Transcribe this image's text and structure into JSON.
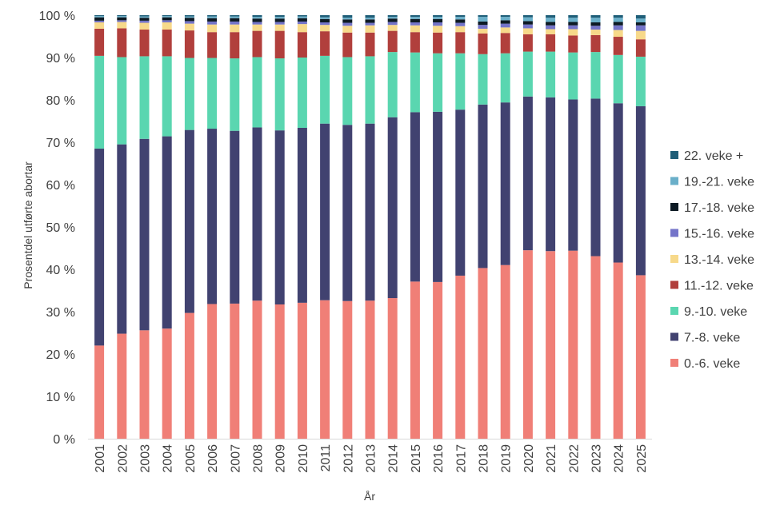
{
  "chart_data": {
    "type": "bar",
    "stacked": true,
    "ylabel": "Prosentdel utførte abortar",
    "xlabel": "År",
    "ylim": [
      0,
      100
    ],
    "yticks": [
      0,
      10,
      20,
      30,
      40,
      50,
      60,
      70,
      80,
      90,
      100
    ],
    "ytick_suffix": " %",
    "grid": false,
    "legend_position": "right",
    "categories": [
      "2001",
      "2002",
      "2003",
      "2004",
      "2005",
      "2006",
      "2007",
      "2008",
      "2009",
      "2010",
      "2011",
      "2012",
      "2013",
      "2014",
      "2015",
      "2016",
      "2017",
      "2018",
      "2019",
      "2020",
      "2021",
      "2022",
      "2023",
      "2024",
      "2025"
    ],
    "series": [
      {
        "name": "0.-6. veke",
        "color": "#F07F77",
        "values": [
          22.0,
          24.8,
          25.6,
          26.0,
          29.7,
          31.8,
          31.9,
          32.6,
          31.7,
          32.1,
          32.7,
          32.5,
          32.6,
          33.2,
          37.1,
          37.0,
          38.5,
          40.3,
          41.0,
          44.5,
          44.3,
          44.4,
          43.1,
          41.6,
          38.6
        ]
      },
      {
        "name": "7.-8. veke",
        "color": "#414270",
        "values": [
          46.5,
          44.7,
          45.2,
          45.4,
          43.2,
          41.4,
          40.8,
          40.9,
          41.1,
          41.3,
          41.7,
          41.6,
          41.8,
          42.7,
          40.0,
          40.2,
          39.2,
          38.6,
          38.4,
          36.3,
          36.3,
          35.7,
          37.2,
          37.6,
          39.9
        ]
      },
      {
        "name": "9.-10. veke",
        "color": "#5AD6B0",
        "values": [
          21.9,
          20.6,
          19.5,
          18.9,
          17.0,
          16.7,
          17.1,
          16.6,
          17.0,
          16.6,
          16.0,
          16.0,
          15.9,
          15.4,
          14.1,
          13.8,
          13.3,
          11.9,
          11.6,
          10.6,
          10.8,
          11.1,
          11.0,
          11.4,
          11.7
        ]
      },
      {
        "name": "11.-12. veke",
        "color": "#B13F3C",
        "values": [
          6.4,
          6.8,
          6.3,
          6.3,
          6.5,
          6.1,
          6.2,
          6.2,
          6.5,
          6.0,
          5.8,
          5.8,
          5.6,
          5.0,
          4.8,
          4.9,
          5.0,
          4.9,
          4.8,
          4.1,
          4.1,
          4.0,
          4.0,
          4.3,
          4.1
        ]
      },
      {
        "name": "13.-14. veke",
        "color": "#F7D98A",
        "values": [
          1.5,
          1.5,
          1.6,
          1.7,
          1.6,
          1.8,
          1.8,
          1.5,
          1.5,
          1.9,
          1.5,
          1.6,
          1.7,
          1.4,
          1.6,
          1.6,
          1.4,
          1.1,
          1.3,
          1.4,
          1.2,
          1.5,
          1.3,
          1.6,
          2.0
        ]
      },
      {
        "name": "15.-16. veke",
        "color": "#7474C9",
        "values": [
          0.4,
          0.4,
          0.5,
          0.5,
          0.6,
          0.7,
          0.7,
          0.6,
          0.6,
          0.6,
          0.6,
          0.7,
          0.6,
          0.7,
          0.7,
          0.8,
          0.8,
          0.9,
          0.9,
          0.9,
          0.9,
          0.9,
          0.9,
          1.1,
          1.3
        ]
      },
      {
        "name": "17.-18. veke",
        "color": "#0D1A24",
        "values": [
          0.8,
          0.7,
          0.7,
          0.7,
          0.8,
          0.8,
          0.8,
          0.8,
          0.8,
          0.8,
          0.8,
          0.8,
          0.8,
          0.8,
          0.8,
          0.8,
          0.8,
          0.8,
          0.8,
          0.8,
          0.8,
          0.8,
          0.8,
          0.8,
          0.7
        ]
      },
      {
        "name": "19.-21. veke",
        "color": "#6AAFC9",
        "values": [
          0.3,
          0.3,
          0.3,
          0.3,
          0.3,
          0.4,
          0.4,
          0.4,
          0.4,
          0.4,
          0.4,
          0.4,
          0.4,
          0.4,
          0.5,
          0.5,
          0.6,
          1.1,
          0.8,
          0.9,
          1.0,
          1.0,
          1.1,
          1.0,
          0.9
        ]
      },
      {
        "name": "22. veke +",
        "color": "#1F5E78",
        "values": [
          0.2,
          0.2,
          0.3,
          0.2,
          0.3,
          0.3,
          0.3,
          0.4,
          0.4,
          0.3,
          0.5,
          0.6,
          0.6,
          0.4,
          0.4,
          0.4,
          0.4,
          0.4,
          0.4,
          0.5,
          0.6,
          0.6,
          0.6,
          0.6,
          0.8
        ]
      }
    ]
  }
}
